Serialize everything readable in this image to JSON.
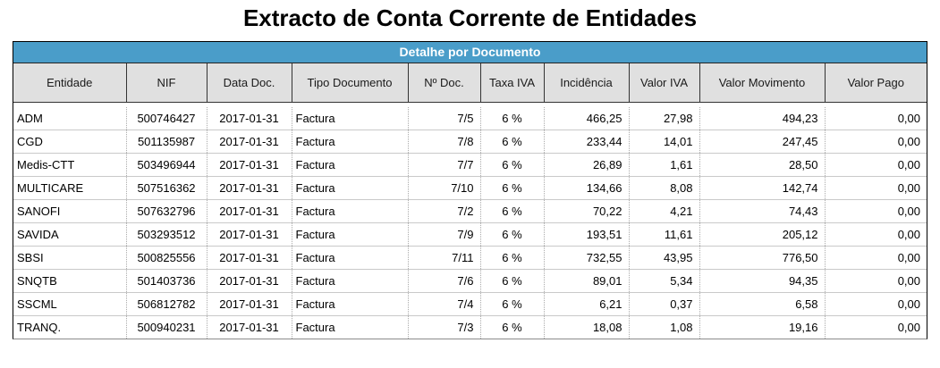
{
  "page": {
    "title": "Extracto de Conta Corrente de Entidades"
  },
  "report": {
    "band_title": "Detalhe por Documento",
    "colors": {
      "band_background": "#4A9DC9",
      "band_text": "#FFFFFF",
      "header_background": "#E0E0E0",
      "outer_border": "#000000",
      "row_line": "#C9C9C9"
    },
    "columns": [
      {
        "key": "entidade",
        "label": "Entidade",
        "align": "left",
        "width": 126
      },
      {
        "key": "nif",
        "label": "NIF",
        "align": "center",
        "width": 90
      },
      {
        "key": "data-doc",
        "label": "Data Doc.",
        "align": "center",
        "width": 95
      },
      {
        "key": "tipo-documento",
        "label": "Tipo Documento",
        "align": "left",
        "width": 130
      },
      {
        "key": "n-doc",
        "label": "Nº Doc.",
        "align": "right",
        "width": 81
      },
      {
        "key": "taxa-iva",
        "label": "Taxa IVA",
        "align": "center",
        "width": 71
      },
      {
        "key": "incidencia",
        "label": "Incidência",
        "align": "right",
        "width": 95
      },
      {
        "key": "valor-iva",
        "label": "Valor IVA",
        "align": "right",
        "width": 79
      },
      {
        "key": "valor-movimento",
        "label": "Valor Movimento",
        "align": "right",
        "width": 140
      },
      {
        "key": "valor-pago",
        "label": "Valor Pago",
        "align": "right",
        "width": 114
      }
    ],
    "rows": [
      [
        "ADM",
        "500746427",
        "2017-01-31",
        "Factura",
        "7/5",
        "6 %",
        "466,25",
        "27,98",
        "494,23",
        "0,00"
      ],
      [
        "CGD",
        "501135987",
        "2017-01-31",
        "Factura",
        "7/8",
        "6 %",
        "233,44",
        "14,01",
        "247,45",
        "0,00"
      ],
      [
        "Medis-CTT",
        "503496944",
        "2017-01-31",
        "Factura",
        "7/7",
        "6 %",
        "26,89",
        "1,61",
        "28,50",
        "0,00"
      ],
      [
        "MULTICARE",
        "507516362",
        "2017-01-31",
        "Factura",
        "7/10",
        "6 %",
        "134,66",
        "8,08",
        "142,74",
        "0,00"
      ],
      [
        "SANOFI",
        "507632796",
        "2017-01-31",
        "Factura",
        "7/2",
        "6 %",
        "70,22",
        "4,21",
        "74,43",
        "0,00"
      ],
      [
        "SAVIDA",
        "503293512",
        "2017-01-31",
        "Factura",
        "7/9",
        "6 %",
        "193,51",
        "11,61",
        "205,12",
        "0,00"
      ],
      [
        "SBSI",
        "500825556",
        "2017-01-31",
        "Factura",
        "7/11",
        "6 %",
        "732,55",
        "43,95",
        "776,50",
        "0,00"
      ],
      [
        "SNQTB",
        "501403736",
        "2017-01-31",
        "Factura",
        "7/6",
        "6 %",
        "89,01",
        "5,34",
        "94,35",
        "0,00"
      ],
      [
        "SSCML",
        "506812782",
        "2017-01-31",
        "Factura",
        "7/4",
        "6 %",
        "6,21",
        "0,37",
        "6,58",
        "0,00"
      ],
      [
        "TRANQ.",
        "500940231",
        "2017-01-31",
        "Factura",
        "7/3",
        "6 %",
        "18,08",
        "1,08",
        "19,16",
        "0,00"
      ]
    ]
  }
}
